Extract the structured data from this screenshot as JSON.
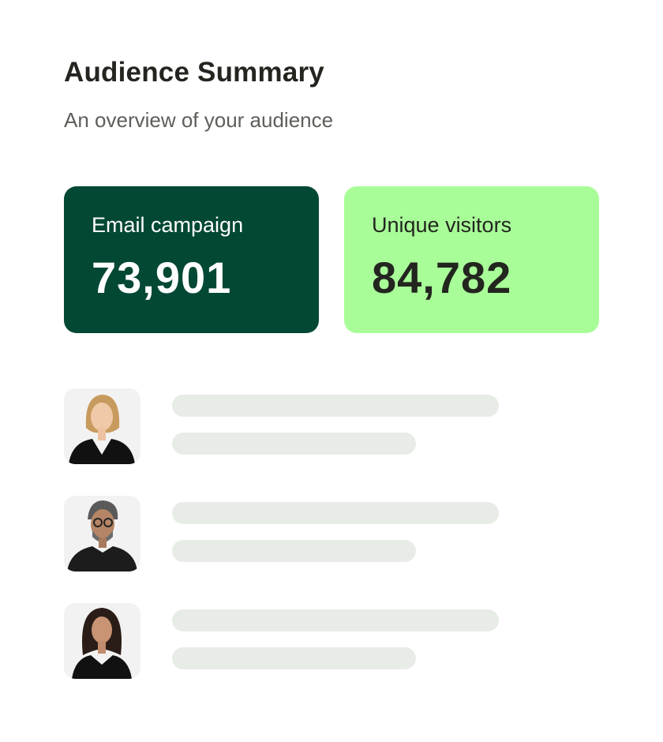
{
  "header": {
    "title": "Audience Summary",
    "subtitle": "An overview of your audience"
  },
  "stats": [
    {
      "label": "Email campaign",
      "value": "73,901",
      "color": "#034834"
    },
    {
      "label": "Unique visitors",
      "value": "84,782",
      "color": "#a8fd98"
    }
  ],
  "audience": [
    {
      "avatar": "woman-blonde-avatar"
    },
    {
      "avatar": "man-glasses-avatar"
    },
    {
      "avatar": "woman-dark-hair-avatar"
    }
  ]
}
